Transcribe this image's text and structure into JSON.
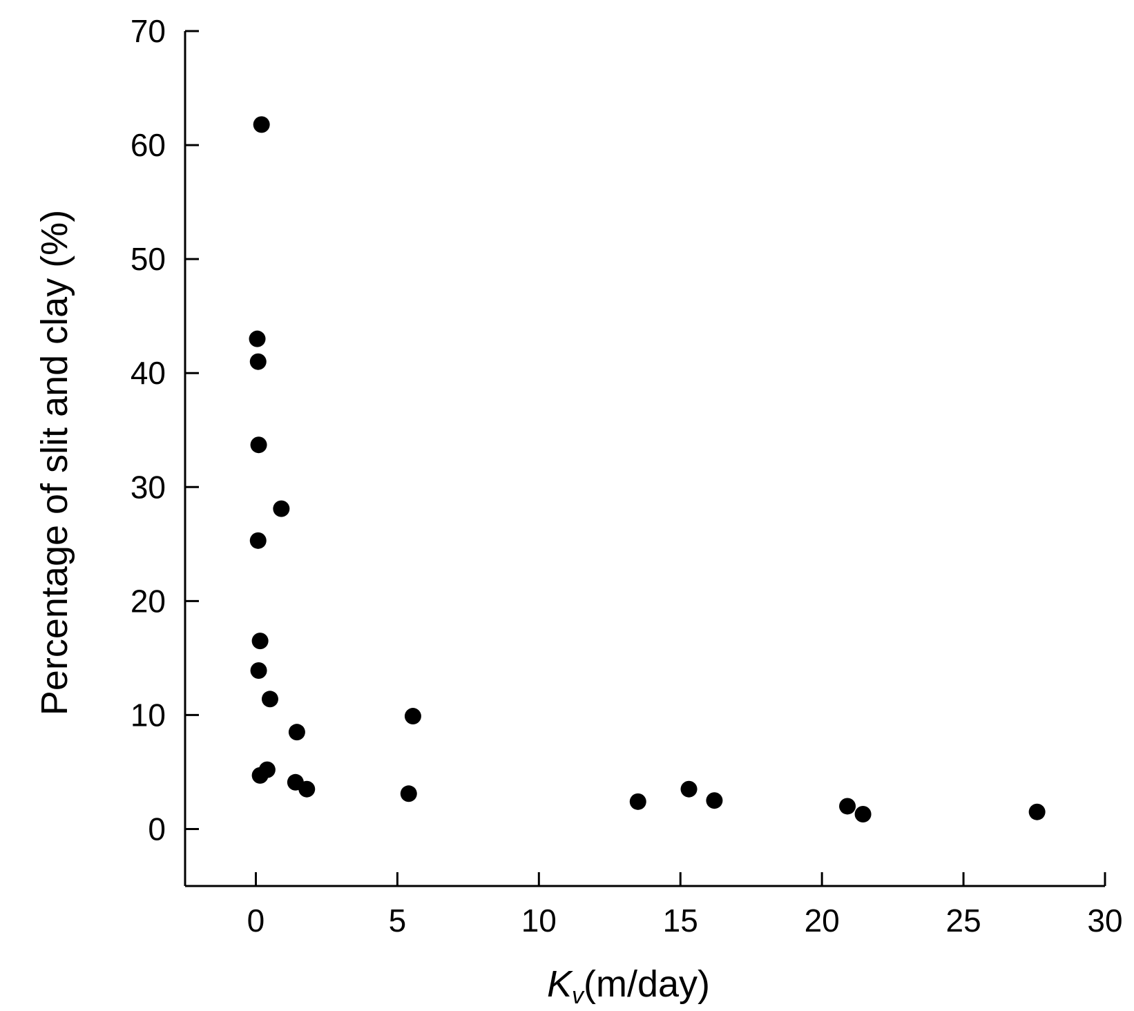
{
  "chart_data": {
    "type": "scatter",
    "title": "",
    "xlabel": {
      "symbol": "K",
      "subscript": "v",
      "unit": "(m/day)"
    },
    "ylabel": "Percentage of slit and clay (%)",
    "xlim": [
      -2.5,
      30
    ],
    "ylim": [
      -5,
      70
    ],
    "xticks": [
      0,
      5,
      10,
      15,
      20,
      25,
      30
    ],
    "yticks": [
      0,
      10,
      20,
      30,
      40,
      50,
      60,
      70
    ],
    "grid": false,
    "legend": "none",
    "marker_color": "#000000",
    "points": [
      {
        "x": 0.2,
        "y": 61.8
      },
      {
        "x": 0.05,
        "y": 43.0
      },
      {
        "x": 0.08,
        "y": 41.0
      },
      {
        "x": 0.1,
        "y": 33.7
      },
      {
        "x": 0.9,
        "y": 28.1
      },
      {
        "x": 0.08,
        "y": 25.3
      },
      {
        "x": 0.15,
        "y": 16.5
      },
      {
        "x": 0.1,
        "y": 13.9
      },
      {
        "x": 0.5,
        "y": 11.4
      },
      {
        "x": 1.45,
        "y": 8.5
      },
      {
        "x": 5.55,
        "y": 9.9
      },
      {
        "x": 0.15,
        "y": 4.7
      },
      {
        "x": 0.4,
        "y": 5.2
      },
      {
        "x": 1.4,
        "y": 4.1
      },
      {
        "x": 1.8,
        "y": 3.5
      },
      {
        "x": 5.4,
        "y": 3.1
      },
      {
        "x": 13.5,
        "y": 2.4
      },
      {
        "x": 15.3,
        "y": 3.5
      },
      {
        "x": 16.2,
        "y": 2.5
      },
      {
        "x": 20.9,
        "y": 2.0
      },
      {
        "x": 21.45,
        "y": 1.3
      },
      {
        "x": 27.6,
        "y": 1.5
      }
    ]
  }
}
